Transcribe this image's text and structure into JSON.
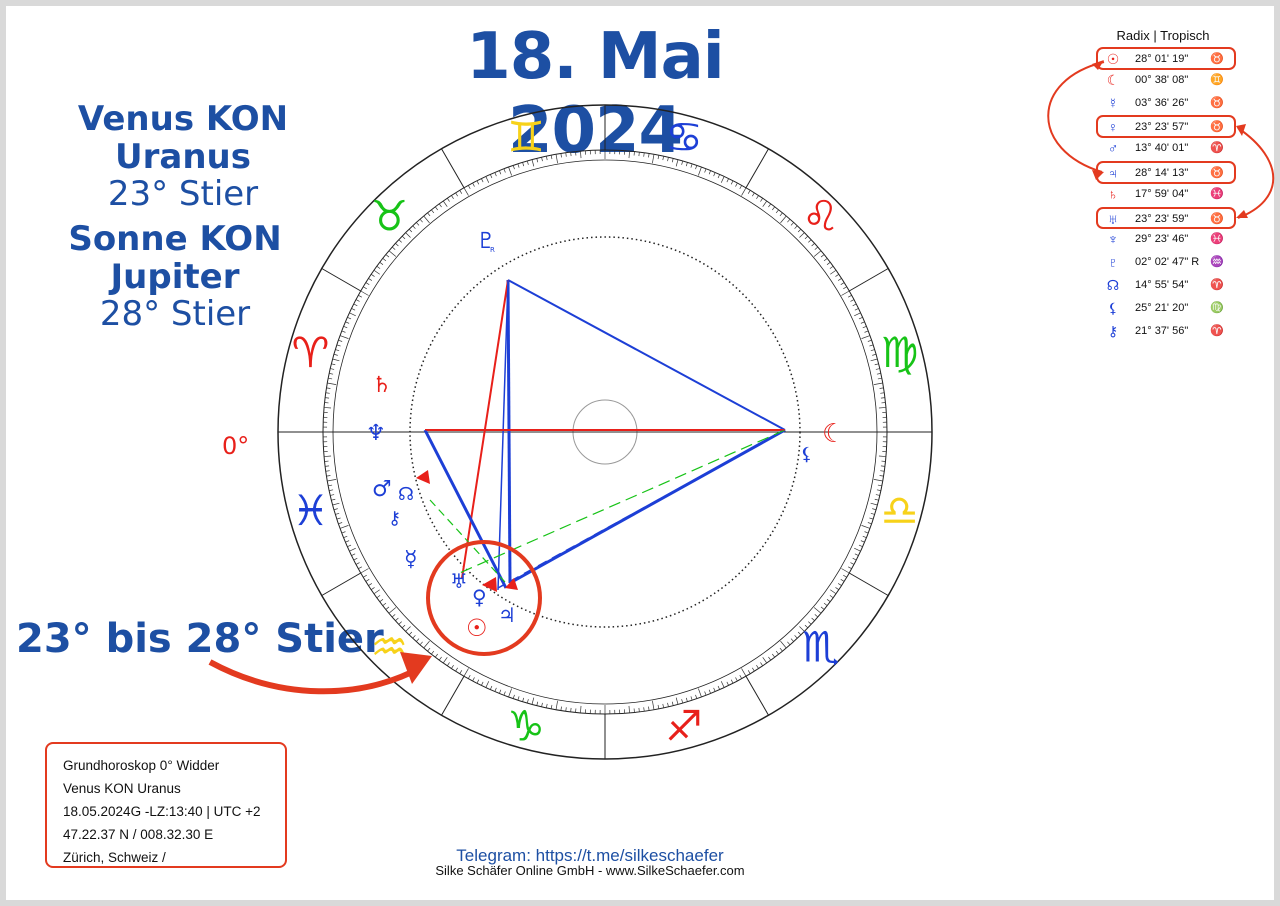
{
  "title": "18. Mai 2024",
  "aspects": [
    {
      "headline": "Venus KON Uranus",
      "detail": "23° Stier"
    },
    {
      "headline": "Sonne KON Jupiter",
      "detail": "28° Stier"
    }
  ],
  "range_label": "23° bis 28° Stier",
  "chart": {
    "ascendant_label": "0°",
    "zodiac_sequence": [
      "capricorn",
      "sagittarius",
      "scorpio",
      "libra",
      "virgo",
      "leo",
      "cancer",
      "gemini",
      "taurus",
      "aries",
      "pisces",
      "aquarius"
    ],
    "zodiac_colors": {
      "fire": "#e8201a",
      "earth": "#17c317",
      "air": "#f7d21a",
      "water": "#1d3fd6"
    },
    "highlight_circle_color": "#e33a1f"
  },
  "table": {
    "header": "Radix | Tropisch",
    "rows": [
      {
        "planet": "Sonne",
        "symbol": "☉",
        "pos": "28° 01' 19\"",
        "sign_symbol": "♉",
        "color": "#e8201a",
        "sign_color": "#17c317",
        "highlight": true
      },
      {
        "planet": "Mond",
        "symbol": "☾",
        "pos": "00° 38' 08\"",
        "sign_symbol": "♊",
        "color": "#e8201a",
        "sign_color": "#f7d21a",
        "highlight": false
      },
      {
        "planet": "Merkur",
        "symbol": "☿",
        "pos": "03° 36' 26\"",
        "sign_symbol": "♉",
        "color": "#1d3fd6",
        "sign_color": "#17c317",
        "highlight": false
      },
      {
        "planet": "Venus",
        "symbol": "♀",
        "pos": "23° 23' 57\"",
        "sign_symbol": "♉",
        "color": "#1d3fd6",
        "sign_color": "#17c317",
        "highlight": true
      },
      {
        "planet": "Mars",
        "symbol": "♂",
        "pos": "13° 40' 01\"",
        "sign_symbol": "♈",
        "color": "#1d3fd6",
        "sign_color": "#e8201a",
        "highlight": false
      },
      {
        "planet": "Jupiter",
        "symbol": "♃",
        "pos": "28° 14' 13\"",
        "sign_symbol": "♉",
        "color": "#1d3fd6",
        "sign_color": "#17c317",
        "highlight": true
      },
      {
        "planet": "Saturn",
        "symbol": "♄",
        "pos": "17° 59' 04\"",
        "sign_symbol": "♓",
        "color": "#e8201a",
        "sign_color": "#1d3fd6",
        "highlight": false
      },
      {
        "planet": "Uranus",
        "symbol": "♅",
        "pos": "23° 23' 59\"",
        "sign_symbol": "♉",
        "color": "#1d3fd6",
        "sign_color": "#17c317",
        "highlight": true
      },
      {
        "planet": "Neptun",
        "symbol": "♆",
        "pos": "29° 23' 46\"",
        "sign_symbol": "♓",
        "color": "#1d3fd6",
        "sign_color": "#1d3fd6",
        "highlight": false
      },
      {
        "planet": "Pluto",
        "symbol": "♇",
        "pos": "02° 02' 47\" R",
        "sign_symbol": "♒",
        "color": "#1d3fd6",
        "sign_color": "#f7d21a",
        "highlight": false
      },
      {
        "planet": "Mondknoten",
        "symbol": "☊",
        "pos": "14° 55' 54\"",
        "sign_symbol": "♈",
        "color": "#1d3fd6",
        "sign_color": "#e8201a",
        "highlight": false
      },
      {
        "planet": "Lilith",
        "symbol": "⚸",
        "pos": "25° 21' 20\"",
        "sign_symbol": "♍",
        "color": "#1d3fd6",
        "sign_color": "#17c317",
        "highlight": false
      },
      {
        "planet": "Chiron",
        "symbol": "⚷",
        "pos": "21° 37' 56\"",
        "sign_symbol": "♈",
        "color": "#1d3fd6",
        "sign_color": "#e8201a",
        "highlight": false
      }
    ]
  },
  "info": {
    "lines": [
      "Grundhoroskop 0° Widder",
      "Venus KON Uranus",
      "18.05.2024G -LZ:13:40 | UTC +2",
      "47.22.37 N / 008.32.30 E",
      "Zürich, Schweiz /"
    ]
  },
  "footer": {
    "telegram": "Telegram: https://t.me/silkeschaefer",
    "company": "Silke Schäfer Online GmbH - www.SilkeSchaefer.com"
  }
}
